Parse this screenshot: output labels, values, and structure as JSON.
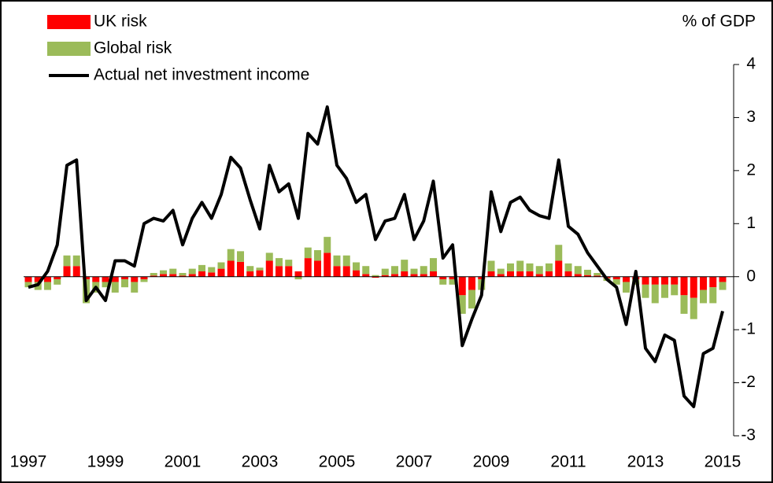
{
  "chart_data": {
    "type": "bar",
    "unit_label": "% of GDP",
    "categories": [
      "1997",
      null,
      null,
      null,
      null,
      null,
      null,
      null,
      "1999",
      null,
      null,
      null,
      null,
      null,
      null,
      null,
      "2001",
      null,
      null,
      null,
      null,
      null,
      null,
      null,
      "2003",
      null,
      null,
      null,
      null,
      null,
      null,
      null,
      "2005",
      null,
      null,
      null,
      null,
      null,
      null,
      null,
      "2007",
      null,
      null,
      null,
      null,
      null,
      null,
      null,
      "2009",
      null,
      null,
      null,
      null,
      null,
      null,
      null,
      "2011",
      null,
      null,
      null,
      null,
      null,
      null,
      null,
      "2013",
      null,
      null,
      null,
      null,
      null,
      null,
      null,
      "2015"
    ],
    "series": [
      {
        "name": "UK risk",
        "type": "bar",
        "color": "#ff0000",
        "values": [
          -0.1,
          -0.1,
          -0.1,
          -0.05,
          0.2,
          0.2,
          -0.05,
          -0.1,
          -0.1,
          -0.1,
          -0.05,
          -0.1,
          -0.05,
          0.02,
          0.05,
          0.05,
          0.02,
          0.05,
          0.1,
          0.08,
          0.15,
          0.3,
          0.28,
          0.1,
          0.12,
          0.3,
          0.2,
          0.2,
          0.1,
          0.35,
          0.3,
          0.45,
          0.2,
          0.2,
          0.12,
          0.05,
          -0.02,
          0.03,
          0.05,
          0.1,
          0.05,
          0.05,
          0.1,
          -0.05,
          -0.05,
          -0.35,
          -0.25,
          -0.05,
          0.1,
          0.05,
          0.1,
          0.1,
          0.1,
          0.05,
          0.1,
          0.3,
          0.1,
          0.05,
          0.03,
          0.02,
          -0.03,
          -0.05,
          -0.1,
          -0.05,
          -0.15,
          -0.15,
          -0.15,
          -0.15,
          -0.35,
          -0.4,
          -0.25,
          -0.2,
          -0.1
        ]
      },
      {
        "name": "Global risk",
        "type": "bar",
        "color": "#9bbb59",
        "values": [
          -0.1,
          -0.15,
          -0.15,
          -0.1,
          0.2,
          0.2,
          -0.45,
          -0.2,
          -0.1,
          -0.2,
          -0.15,
          -0.2,
          -0.05,
          0.05,
          0.07,
          0.1,
          0.05,
          0.1,
          0.12,
          0.1,
          0.12,
          0.22,
          0.2,
          0.1,
          0.05,
          0.15,
          0.15,
          0.12,
          -0.05,
          0.2,
          0.2,
          0.3,
          0.2,
          0.2,
          0.15,
          0.15,
          0.03,
          0.12,
          0.15,
          0.22,
          0.1,
          0.15,
          0.25,
          -0.1,
          -0.1,
          -0.35,
          -0.35,
          -0.2,
          0.2,
          0.1,
          0.15,
          0.2,
          0.15,
          0.15,
          0.15,
          0.3,
          0.15,
          0.15,
          0.1,
          0.05,
          -0.05,
          -0.1,
          -0.2,
          -0.1,
          -0.25,
          -0.35,
          -0.25,
          -0.2,
          -0.35,
          -0.4,
          -0.25,
          -0.3,
          -0.15
        ]
      },
      {
        "name": "Actual net investment income",
        "type": "line",
        "color": "#000000",
        "values": [
          -0.2,
          -0.15,
          0.1,
          0.6,
          2.1,
          2.2,
          -0.45,
          -0.2,
          -0.45,
          0.3,
          0.3,
          0.2,
          1.0,
          1.1,
          1.05,
          1.25,
          0.6,
          1.1,
          1.4,
          1.1,
          1.55,
          2.25,
          2.05,
          1.45,
          0.9,
          2.1,
          1.6,
          1.75,
          1.1,
          2.7,
          2.5,
          3.2,
          2.1,
          1.85,
          1.4,
          1.55,
          0.7,
          1.05,
          1.1,
          1.55,
          0.7,
          1.05,
          1.8,
          0.35,
          0.6,
          -1.3,
          -0.8,
          -0.35,
          1.6,
          0.85,
          1.4,
          1.5,
          1.25,
          1.15,
          1.1,
          2.2,
          0.95,
          0.8,
          0.45,
          0.2,
          -0.05,
          -0.2,
          -0.9,
          0.1,
          -1.35,
          -1.6,
          -1.1,
          -1.2,
          -2.25,
          -2.45,
          -1.45,
          -1.35,
          -0.65
        ]
      }
    ],
    "ylim": [
      -3,
      4
    ],
    "yticks": [
      -3,
      -2,
      -1,
      0,
      1,
      2,
      3,
      4
    ],
    "legend": "top-left"
  }
}
